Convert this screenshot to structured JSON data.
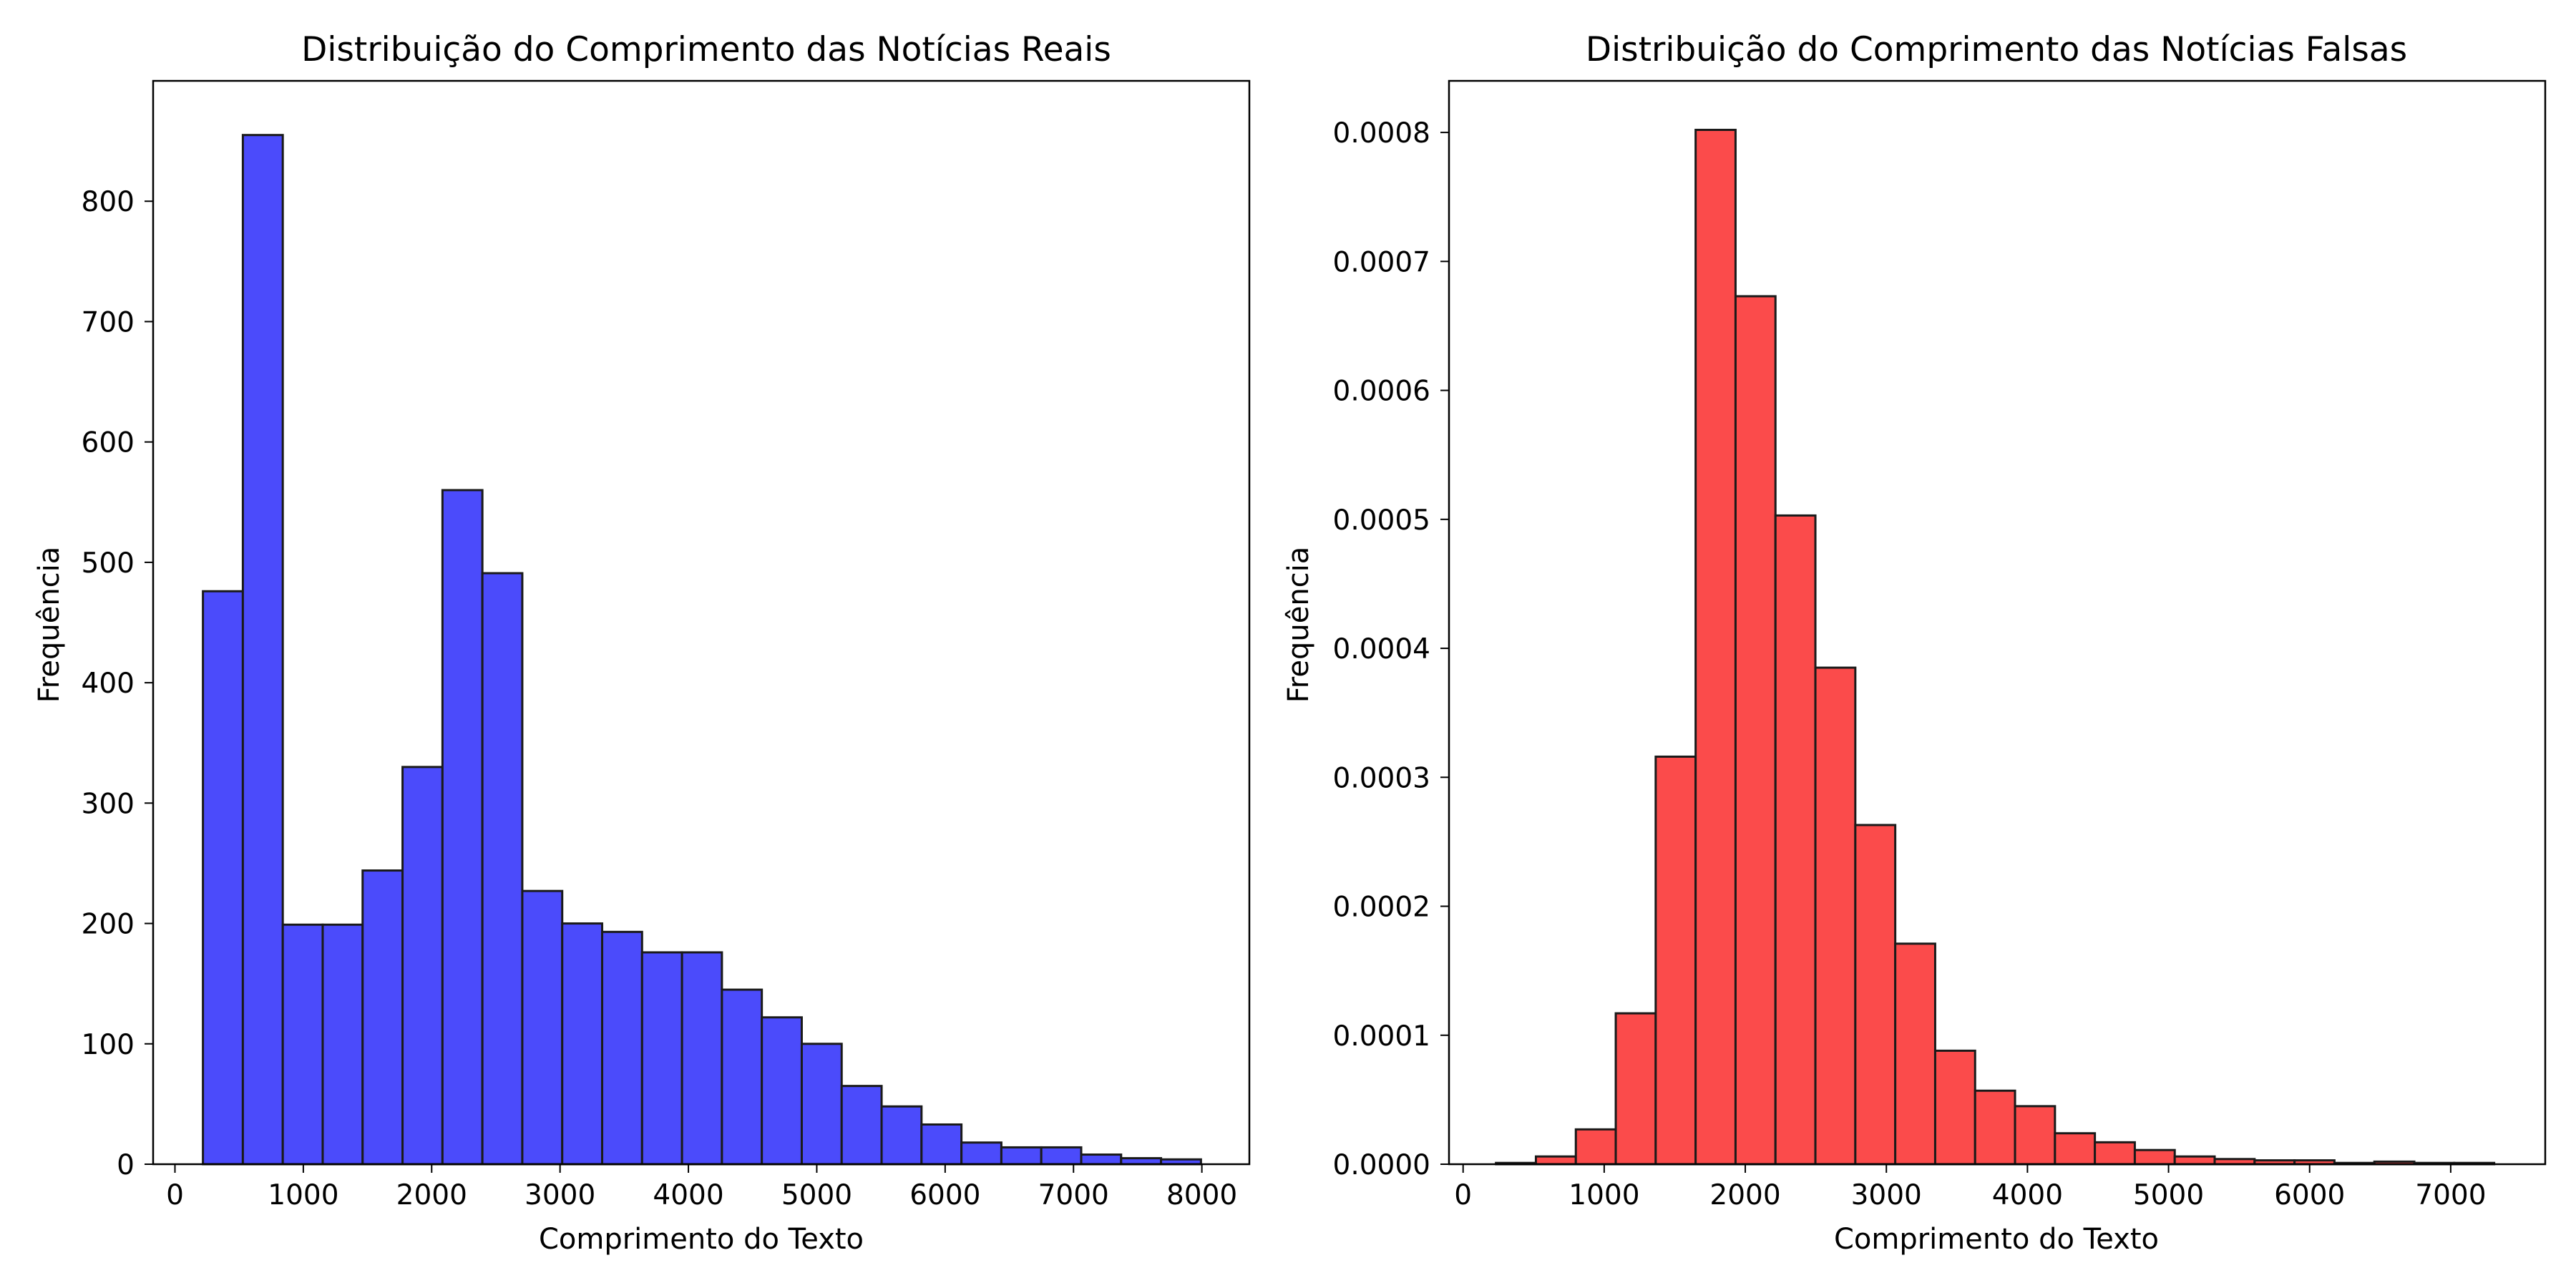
{
  "chart_data": [
    {
      "type": "bar",
      "title": "Distribuição do Comprimento das Notícias Reais",
      "xlabel": "Comprimento do Texto",
      "ylabel": "Frequência",
      "color": "#4b4bfb",
      "edge_color": "#1a1a1a",
      "xlim": [
        -170,
        8370
      ],
      "ylim": [
        0,
        900
      ],
      "x_ticks": [
        0,
        1000,
        2000,
        3000,
        4000,
        5000,
        6000,
        7000,
        8000
      ],
      "x_tick_labels": [
        "0",
        "1000",
        "2000",
        "3000",
        "4000",
        "5000",
        "6000",
        "7000",
        "8000"
      ],
      "y_ticks": [
        0,
        100,
        200,
        300,
        400,
        500,
        600,
        700,
        800
      ],
      "y_tick_labels": [
        "0",
        "100",
        "200",
        "300",
        "400",
        "500",
        "600",
        "700",
        "800"
      ],
      "bin_edges": [
        218,
        529,
        840,
        1151,
        1462,
        1773,
        2084,
        2395,
        2706,
        3017,
        3328,
        3639,
        3950,
        4261,
        4572,
        4883,
        5194,
        5505,
        5816,
        6127,
        6438,
        6749,
        7060,
        7371,
        7682,
        7993
      ],
      "values": [
        476,
        855,
        199,
        199,
        244,
        330,
        560,
        491,
        227,
        200,
        193,
        176,
        176,
        145,
        122,
        100,
        65,
        48,
        33,
        18,
        14,
        14,
        8,
        5,
        4
      ]
    },
    {
      "type": "bar",
      "title": "Distribuição do Comprimento das Notícias Falsas",
      "xlabel": "Comprimento do Texto",
      "ylabel": "Frequência",
      "color": "#fb4b4b",
      "edge_color": "#1a1a1a",
      "xlim": [
        -100,
        7670
      ],
      "ylim": [
        0,
        0.00084
      ],
      "x_ticks": [
        0,
        1000,
        2000,
        3000,
        4000,
        5000,
        6000,
        7000
      ],
      "x_tick_labels": [
        "0",
        "1000",
        "2000",
        "3000",
        "4000",
        "5000",
        "6000",
        "7000"
      ],
      "y_ticks": [
        0,
        0.0001,
        0.0002,
        0.0003,
        0.0004,
        0.0005,
        0.0006,
        0.0007,
        0.0008
      ],
      "y_tick_labels": [
        "0.0000",
        "0.0001",
        "0.0002",
        "0.0003",
        "0.0004",
        "0.0005",
        "0.0006",
        "0.0007",
        "0.0008"
      ],
      "bin_edges": [
        233,
        516,
        799,
        1082,
        1365,
        1648,
        1931,
        2214,
        2497,
        2780,
        3063,
        3346,
        3629,
        3912,
        4195,
        4478,
        4761,
        5044,
        5327,
        5610,
        5893,
        6176,
        6459,
        6742,
        7025,
        7308
      ],
      "values": [
        1e-06,
        6e-06,
        2.7e-05,
        0.000117,
        0.000316,
        0.000802,
        0.000673,
        0.000503,
        0.000385,
        0.000263,
        0.000171,
        8.8e-05,
        5.7e-05,
        4.5e-05,
        2.4e-05,
        1.7e-05,
        1.1e-05,
        6e-06,
        4e-06,
        3e-06,
        3e-06,
        1e-06,
        2e-06,
        1e-06,
        1e-06
      ]
    }
  ]
}
